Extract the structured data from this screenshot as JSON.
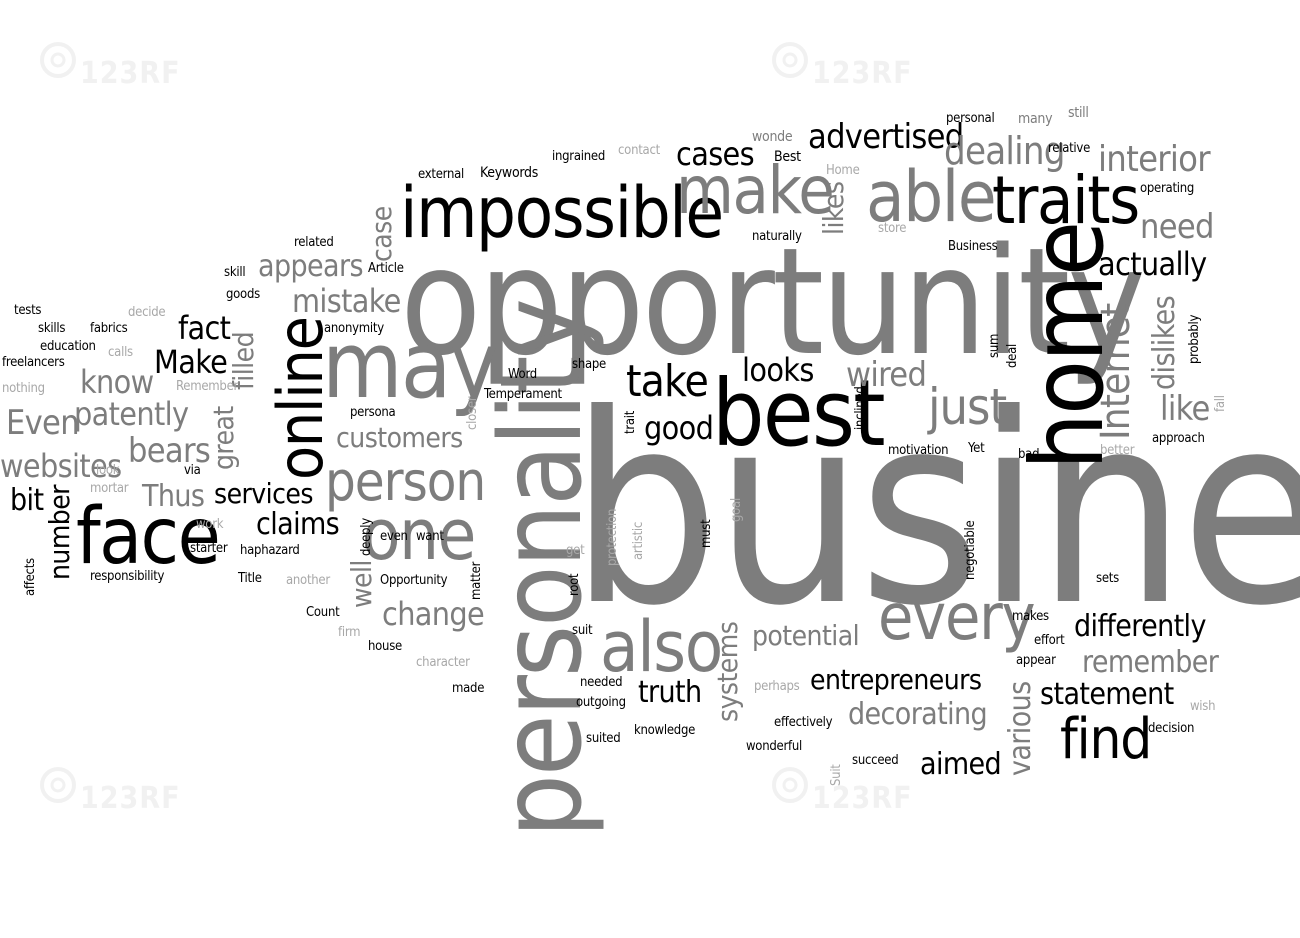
{
  "colors": {
    "background": "#ffffff",
    "dark": "#000000",
    "mid": "#7d7d7d",
    "light": "#a8a8a8",
    "watermark": "#e6e6e6"
  },
  "watermark": {
    "text": "123RF",
    "icon": "camera-aperture-icon"
  },
  "words": [
    {
      "text": "business"
    },
    {
      "text": "opportunity"
    },
    {
      "text": "personality"
    },
    {
      "text": "home"
    },
    {
      "text": "best"
    },
    {
      "text": "impossible"
    },
    {
      "text": "may"
    },
    {
      "text": "online"
    },
    {
      "text": "face"
    },
    {
      "text": "traits"
    },
    {
      "text": "able"
    },
    {
      "text": "make"
    },
    {
      "text": "every"
    },
    {
      "text": "one"
    },
    {
      "text": "also"
    },
    {
      "text": "find"
    },
    {
      "text": "Internet"
    },
    {
      "text": "person"
    },
    {
      "text": "just"
    },
    {
      "text": "advertised"
    },
    {
      "text": "take"
    },
    {
      "text": "dealing"
    },
    {
      "text": "interior"
    },
    {
      "text": "cases"
    },
    {
      "text": "looks"
    },
    {
      "text": "wired"
    },
    {
      "text": "good"
    },
    {
      "text": "actually"
    },
    {
      "text": "need"
    },
    {
      "text": "like"
    },
    {
      "text": "dislikes"
    },
    {
      "text": "appears"
    },
    {
      "text": "mistake"
    },
    {
      "text": "case"
    },
    {
      "text": "likes"
    },
    {
      "text": "fact"
    },
    {
      "text": "Make"
    },
    {
      "text": "know"
    },
    {
      "text": "patently"
    },
    {
      "text": "Even"
    },
    {
      "text": "bears"
    },
    {
      "text": "websites"
    },
    {
      "text": "Thus"
    },
    {
      "text": "bit"
    },
    {
      "text": "number"
    },
    {
      "text": "great"
    },
    {
      "text": "filled"
    },
    {
      "text": "customers"
    },
    {
      "text": "services"
    },
    {
      "text": "claims"
    },
    {
      "text": "well"
    },
    {
      "text": "change"
    },
    {
      "text": "potential"
    },
    {
      "text": "systems"
    },
    {
      "text": "truth"
    },
    {
      "text": "entrepreneurs"
    },
    {
      "text": "decorating"
    },
    {
      "text": "aimed"
    },
    {
      "text": "various"
    },
    {
      "text": "differently"
    },
    {
      "text": "remember"
    },
    {
      "text": "statement"
    },
    {
      "text": "personal"
    },
    {
      "text": "many"
    },
    {
      "text": "still"
    },
    {
      "text": "wonde"
    },
    {
      "text": "Best"
    },
    {
      "text": "contact"
    },
    {
      "text": "ingrained"
    },
    {
      "text": "external"
    },
    {
      "text": "Keywords"
    },
    {
      "text": "relative"
    },
    {
      "text": "Home"
    },
    {
      "text": "operating"
    },
    {
      "text": "store"
    },
    {
      "text": "naturally"
    },
    {
      "text": "Business"
    },
    {
      "text": "Article"
    },
    {
      "text": "related"
    },
    {
      "text": "skill"
    },
    {
      "text": "goods"
    },
    {
      "text": "decide"
    },
    {
      "text": "tests"
    },
    {
      "text": "skills"
    },
    {
      "text": "fabrics"
    },
    {
      "text": "anonymity"
    },
    {
      "text": "education"
    },
    {
      "text": "calls"
    },
    {
      "text": "freelancers"
    },
    {
      "text": "Remember"
    },
    {
      "text": "nothing"
    },
    {
      "text": "via"
    },
    {
      "text": "look"
    },
    {
      "text": "mortar"
    },
    {
      "text": "work"
    },
    {
      "text": "affects"
    },
    {
      "text": "starter"
    },
    {
      "text": "haphazard"
    },
    {
      "text": "responsibility"
    },
    {
      "text": "Title"
    },
    {
      "text": "another"
    },
    {
      "text": "Count"
    },
    {
      "text": "firm"
    },
    {
      "text": "house"
    },
    {
      "text": "character"
    },
    {
      "text": "made"
    },
    {
      "text": "Opportunity"
    },
    {
      "text": "deeply"
    },
    {
      "text": "even"
    },
    {
      "text": "want"
    },
    {
      "text": "persona"
    },
    {
      "text": "closer"
    },
    {
      "text": "Word"
    },
    {
      "text": "Temperament"
    },
    {
      "text": "shape"
    },
    {
      "text": "matter"
    },
    {
      "text": "root"
    },
    {
      "text": "suit"
    },
    {
      "text": "needed"
    },
    {
      "text": "outgoing"
    },
    {
      "text": "suited"
    },
    {
      "text": "knowledge"
    },
    {
      "text": "get"
    },
    {
      "text": "protection"
    },
    {
      "text": "artistic"
    },
    {
      "text": "trait"
    },
    {
      "text": "goal"
    },
    {
      "text": "must"
    },
    {
      "text": "inclined"
    },
    {
      "text": "motivation"
    },
    {
      "text": "Yet"
    },
    {
      "text": "negotiable"
    },
    {
      "text": "sum"
    },
    {
      "text": "deal"
    },
    {
      "text": "bad"
    },
    {
      "text": "better"
    },
    {
      "text": "approach"
    },
    {
      "text": "probably"
    },
    {
      "text": "fall"
    },
    {
      "text": "sets"
    },
    {
      "text": "makes"
    },
    {
      "text": "effort"
    },
    {
      "text": "appear"
    },
    {
      "text": "perhaps"
    },
    {
      "text": "effectively"
    },
    {
      "text": "wonderful"
    },
    {
      "text": "Suit"
    },
    {
      "text": "succeed"
    },
    {
      "text": "wish"
    },
    {
      "text": "decision"
    }
  ]
}
